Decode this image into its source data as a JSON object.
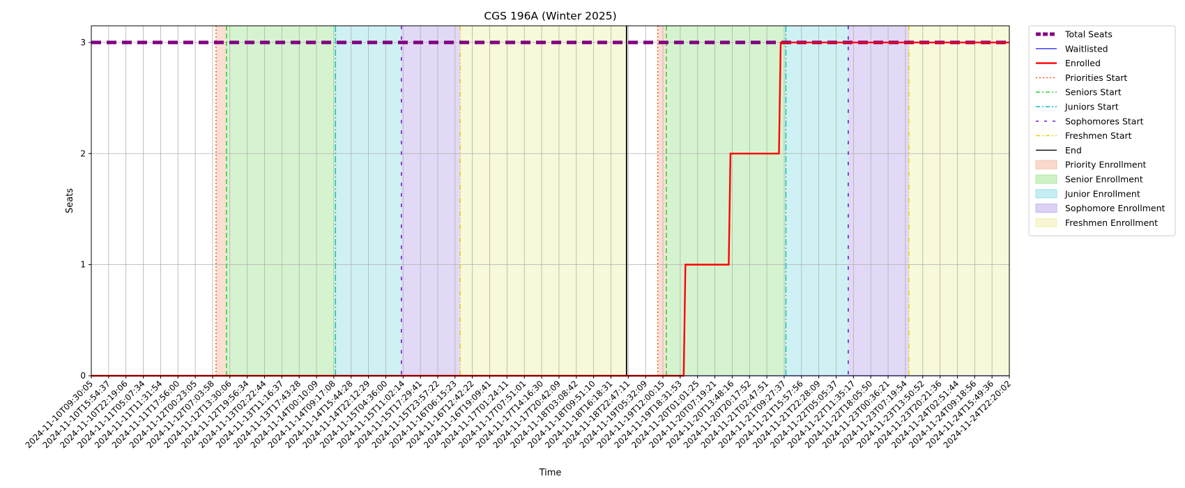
{
  "chart_data": {
    "type": "line",
    "title": "CGS 196A (Winter 2025)",
    "xlabel": "Time",
    "ylabel": "Seats",
    "ylim": [
      0,
      3.15
    ],
    "yticks": [
      0,
      1,
      2,
      3
    ],
    "grid": true,
    "legend_position": "outside-right",
    "x_ticks": [
      "2024-11-10T09:30:05",
      "2024-11-10T15:54:37",
      "2024-11-10T22:19:06",
      "2024-11-11T05:07:34",
      "2024-11-11T11:31:54",
      "2024-11-11T17:56:00",
      "2024-11-12T00:23:05",
      "2024-11-12T07:03:58",
      "2024-11-12T13:30:06",
      "2024-11-12T19:56:34",
      "2024-11-13T02:22:44",
      "2024-11-13T11:16:37",
      "2024-11-13T17:43:28",
      "2024-11-14T00:10:09",
      "2024-11-14T09:17:08",
      "2024-11-14T15:44:28",
      "2024-11-14T22:12:29",
      "2024-11-15T04:36:00",
      "2024-11-15T11:02:14",
      "2024-11-15T17:29:41",
      "2024-11-15T23:57:22",
      "2024-11-16T06:15:23",
      "2024-11-16T12:42:22",
      "2024-11-16T19:09:41",
      "2024-11-17T01:24:11",
      "2024-11-17T07:51:01",
      "2024-11-17T14:16:30",
      "2024-11-17T20:42:09",
      "2024-11-18T03:08:42",
      "2024-11-18T09:51:10",
      "2024-11-18T16:18:31",
      "2024-11-18T22:47:11",
      "2024-11-19T05:32:09",
      "2024-11-19T12:00:15",
      "2024-11-19T18:31:53",
      "2024-11-20T01:01:25",
      "2024-11-20T07:19:21",
      "2024-11-20T13:48:16",
      "2024-11-20T20:17:52",
      "2024-11-21T02:47:51",
      "2024-11-21T09:27:37",
      "2024-11-21T15:57:56",
      "2024-11-21T22:28:09",
      "2024-11-22T05:05:37",
      "2024-11-22T11:35:17",
      "2024-11-22T18:05:50",
      "2024-11-23T00:36:21",
      "2024-11-23T07:19:54",
      "2024-11-23T13:50:52",
      "2024-11-23T20:21:36",
      "2024-11-24T02:51:44",
      "2024-11-24T09:18:56",
      "2024-11-24T15:49:36",
      "2024-11-24T22:20:02"
    ],
    "x_range": [
      0,
      53
    ],
    "series": [
      {
        "name": "Total Seats",
        "color": "#800080",
        "style": "dashed-thick",
        "x": [
          0,
          53
        ],
        "y": [
          3,
          3
        ]
      },
      {
        "name": "Waitlisted",
        "color": "#0000ff",
        "style": "solid-thin",
        "x": [
          0,
          53
        ],
        "y": [
          0,
          0
        ]
      },
      {
        "name": "Enrolled",
        "color": "#ff0000",
        "style": "solid",
        "x": [
          0,
          34.2,
          34.3,
          36.8,
          36.9,
          39.7,
          39.8,
          53
        ],
        "y": [
          0,
          0,
          1,
          1,
          2,
          2,
          3,
          3
        ]
      }
    ],
    "events": [
      {
        "name": "Priorities Start",
        "color": "#ff4500",
        "style": "dotted",
        "x": [
          7.2,
          32.7
        ]
      },
      {
        "name": "Seniors Start",
        "color": "#22cc22",
        "style": "dashed",
        "x": [
          7.8,
          33.2
        ]
      },
      {
        "name": "Juniors Start",
        "color": "#00bfbf",
        "style": "dashdot",
        "x": [
          14.1,
          40.1
        ]
      },
      {
        "name": "Sophomores Start",
        "color": "#6600cc",
        "style": "loosedash",
        "x": [
          17.9,
          43.7
        ]
      },
      {
        "name": "Freshmen Start",
        "color": "#e6cc00",
        "style": "dashdotdot",
        "x": [
          21.3,
          47.2
        ]
      },
      {
        "name": "End",
        "color": "#000000",
        "style": "solid",
        "x": [
          30.9
        ]
      }
    ],
    "periods": [
      {
        "name": "Priority Enrollment",
        "color": "#f5c0a8",
        "spans": [
          [
            7.2,
            7.8
          ],
          [
            32.7,
            33.2
          ]
        ]
      },
      {
        "name": "Senior Enrollment",
        "color": "#aee8a0",
        "spans": [
          [
            7.8,
            14.1
          ],
          [
            33.2,
            40.1
          ]
        ]
      },
      {
        "name": "Junior Enrollment",
        "color": "#9fe3ea",
        "spans": [
          [
            14.1,
            17.9
          ],
          [
            40.1,
            43.7
          ]
        ]
      },
      {
        "name": "Sophomore Enrollment",
        "color": "#c6b3ef",
        "spans": [
          [
            17.9,
            21.3
          ],
          [
            43.7,
            47.2
          ]
        ]
      },
      {
        "name": "Freshmen Enrollment",
        "color": "#f2f2b6",
        "spans": [
          [
            21.3,
            30.9
          ],
          [
            47.2,
            53
          ]
        ]
      }
    ],
    "legend": [
      "Total Seats",
      "Waitlisted",
      "Enrolled",
      "Priorities Start",
      "Seniors Start",
      "Juniors Start",
      "Sophomores Start",
      "Freshmen Start",
      "End",
      "Priority Enrollment",
      "Senior Enrollment",
      "Junior Enrollment",
      "Sophomore Enrollment",
      "Freshmen Enrollment"
    ]
  }
}
